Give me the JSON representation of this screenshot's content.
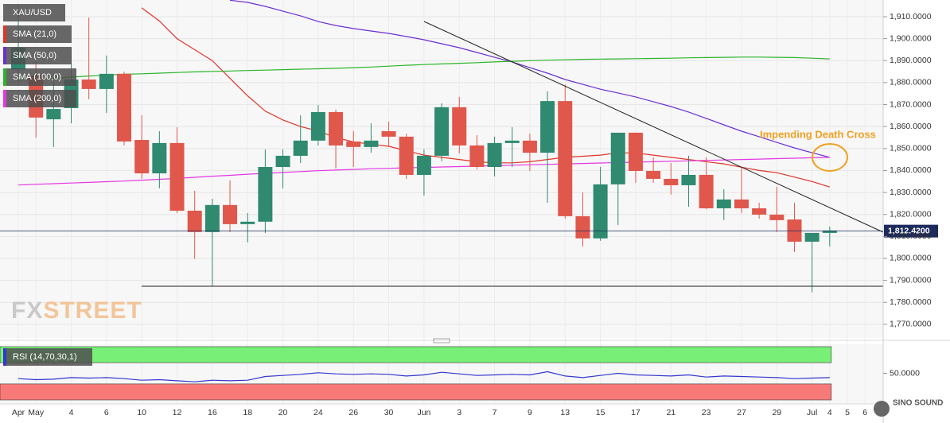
{
  "chart_data": {
    "type": "candlestick",
    "symbol": "XAU/USD",
    "categories": [
      "Apr",
      "May",
      null,
      "4",
      null,
      "6",
      null,
      "10",
      null,
      "12",
      null,
      "16",
      null,
      "18",
      null,
      "20",
      null,
      "24",
      null,
      "26",
      null,
      "30",
      null,
      "Jun",
      null,
      "3",
      null,
      "7",
      null,
      "9",
      null,
      "13",
      null,
      "15",
      null,
      "17",
      null,
      "21",
      null,
      "23",
      null,
      "27",
      null,
      "29",
      null,
      "Jul",
      "4",
      "5",
      "6"
    ],
    "open": [
      1886,
      1883.2,
      1863.3,
      1868.4,
      1881.4,
      1877.1,
      1884,
      1853.9,
      1838.7,
      1852.5,
      1821.7,
      1812,
      1824.3,
      1815.6,
      1816.7,
      1841.6,
      1846.7,
      1853.6,
      1866.6,
      1853.2,
      1850.7,
      1857.9,
      1855.4,
      1838,
      1846.7,
      1868.8,
      1851.4,
      1841.6,
      1852.5,
      1853.6,
      1848.1,
      1871.6,
      1819.2,
      1809.1,
      1833.7,
      1857.2,
      1839.8,
      1836.2,
      1833.3,
      1838,
      1822.8,
      1826.8,
      1822.8,
      1819.9,
      1817.7,
      1807.6,
      1811.6,
      null,
      null
    ],
    "high": [
      1915,
      1890.4,
      1881.4,
      1895.7,
      1909.6,
      1892.3,
      1885,
      1865.1,
      1857.9,
      1859.7,
      1830.8,
      1827.1,
      1835.5,
      1820.6,
      1849.6,
      1849.6,
      1865.1,
      1869.8,
      1867.7,
      1857.9,
      1861.5,
      1862.2,
      1856.8,
      1849.6,
      1870.6,
      1873.5,
      1856.1,
      1855.4,
      1859.7,
      1856.8,
      1876,
      1879.2,
      1830,
      1841.6,
      1857.2,
      1857.2,
      1846,
      1843.4,
      1846.7,
      1846,
      1831.5,
      1841.6,
      1825.3,
      1832.6,
      1825.3,
      1811.6,
      1814.5,
      null,
      null
    ],
    "low": [
      1880,
      1854.9,
      1850.7,
      1861.5,
      1872.4,
      1866.2,
      1851.4,
      1836.2,
      1831.9,
      1820.6,
      1799.7,
      1787.4,
      1812,
      1807.3,
      1811.6,
      1831.9,
      1843.4,
      1851.4,
      1840.9,
      1841.6,
      1848.1,
      1850.7,
      1836.2,
      1828.6,
      1844.2,
      1847.8,
      1840.5,
      1837.3,
      1841.6,
      1839.8,
      1825.3,
      1818.1,
      1805.4,
      1808,
      1815.2,
      1834.4,
      1834.4,
      1829,
      1823.5,
      1822.4,
      1817.4,
      1820.6,
      1818.1,
      1812,
      1802.9,
      1784.5,
      1805.4,
      null,
      null
    ],
    "close": [
      1896,
      1864.1,
      1868,
      1881.4,
      1877.1,
      1884,
      1853.2,
      1838.7,
      1852.5,
      1821.7,
      1812,
      1824.3,
      1815.6,
      1816.7,
      1841.6,
      1846.7,
      1853.6,
      1866.6,
      1851.4,
      1850.7,
      1853.6,
      1855.4,
      1838,
      1846.7,
      1868.8,
      1851.4,
      1841.6,
      1852.5,
      1853.6,
      1848.1,
      1871.6,
      1819.2,
      1809.1,
      1833.7,
      1857.2,
      1839.8,
      1836.2,
      1833.3,
      1838,
      1822.8,
      1826.8,
      1822.8,
      1819.9,
      1817.4,
      1807.6,
      1811.6,
      1812.7,
      null,
      null
    ],
    "up_color": "#2f8a70",
    "down_color": "#e0574b",
    "series": [
      {
        "name": "SMA (21,0)",
        "color": "#e2332a",
        "values": [
          null,
          null,
          null,
          null,
          null,
          null,
          null,
          1914,
          1908,
          1900,
          1895,
          1890,
          1882,
          1874,
          1867,
          1863,
          1860,
          1858,
          1855,
          1853,
          1852,
          1851,
          1849,
          1847,
          1846,
          1845,
          1844,
          1843.5,
          1843.5,
          1844,
          1845,
          1846,
          1846.5,
          1847,
          1848,
          1848,
          1847,
          1846,
          1845,
          1844,
          1843,
          1841.5,
          1840,
          1839,
          1837,
          1835,
          1832.5,
          null,
          null
        ]
      },
      {
        "name": "SMA (50,0)",
        "color": "#6a2fd4",
        "values": [
          null,
          null,
          null,
          null,
          null,
          null,
          null,
          null,
          null,
          null,
          null,
          null,
          1917.5,
          1916.5,
          1914.7,
          1912.5,
          1910.4,
          1907.8,
          1906,
          1904.6,
          1903.5,
          1902.4,
          1901,
          1899.5,
          1897.7,
          1895.9,
          1893.7,
          1891.5,
          1889.4,
          1886.8,
          1884.3,
          1881.4,
          1879.2,
          1877,
          1875.3,
          1873.5,
          1871.3,
          1869.1,
          1866.6,
          1863.7,
          1860.8,
          1857.9,
          1855.4,
          1852.8,
          1850.3,
          1848.1,
          1846,
          null,
          null
        ]
      },
      {
        "name": "SMA (100,0)",
        "color": "#2bb52b",
        "values": [
          1881.2,
          1881.6,
          1882,
          1882.5,
          1883,
          1883.4,
          1883.8,
          1884,
          1884.3,
          1884.6,
          1884.9,
          1885.1,
          1885.3,
          1885.5,
          1885.7,
          1885.9,
          1886.1,
          1886.3,
          1886.5,
          1886.8,
          1887.1,
          1887.5,
          1887.9,
          1888.2,
          1888.5,
          1888.8,
          1889.1,
          1889.4,
          1889.7,
          1890,
          1890.2,
          1890.4,
          1890.6,
          1890.7,
          1890.8,
          1890.9,
          1891,
          1891.1,
          1891.3,
          1891.4,
          1891.5,
          1891.6,
          1891.6,
          1891.5,
          1891.4,
          1891.1,
          1890.8,
          null,
          null
        ]
      },
      {
        "name": "SMA (200,0)",
        "color": "#e437e4",
        "values": [
          1833.4,
          1833.7,
          1834,
          1834.3,
          1834.6,
          1834.9,
          1835.2,
          1835.6,
          1836,
          1836.4,
          1836.9,
          1837.4,
          1837.8,
          1838.3,
          1838.7,
          1839.1,
          1839.5,
          1839.9,
          1840.2,
          1840.5,
          1840.8,
          1841,
          1841.2,
          1841.4,
          1841.6,
          1841.8,
          1842,
          1842.2,
          1842.4,
          1842.6,
          1842.8,
          1843,
          1843.2,
          1843.4,
          1843.6,
          1843.8,
          1844,
          1844.2,
          1844.4,
          1844.6,
          1844.8,
          1845,
          1845.2,
          1845.4,
          1845.6,
          1845.8,
          1846,
          null,
          null
        ]
      }
    ],
    "ylim": [
      1763.8,
      1917.6
    ],
    "yticks": [
      {
        "value": 1770,
        "label": "1,770.0000"
      },
      {
        "value": 1780,
        "label": "1,780.0000"
      },
      {
        "value": 1790,
        "label": "1,790.0000"
      },
      {
        "value": 1800,
        "label": "1,800.0000"
      },
      {
        "value": 1810,
        "label": "1,810.0000"
      },
      {
        "value": 1820,
        "label": "1,820.0000"
      },
      {
        "value": 1830,
        "label": "1,830.0000"
      },
      {
        "value": 1840,
        "label": "1,840.0000"
      },
      {
        "value": 1850,
        "label": "1,850.0000"
      },
      {
        "value": 1860,
        "label": "1,860.0000"
      },
      {
        "value": 1870,
        "label": "1,870.0000"
      },
      {
        "value": 1880,
        "label": "1,880.0000"
      },
      {
        "value": 1890,
        "label": "1,890.0000"
      },
      {
        "value": 1900,
        "label": "1,900.0000"
      },
      {
        "value": 1910,
        "label": "1,910.0000"
      }
    ],
    "last_price": {
      "value": 1812.42,
      "label": "1,812.4200"
    },
    "annotation": "Impending Death Cross",
    "grid": true,
    "indicator": {
      "type": "line",
      "name": "RSI (14,70,30,1)",
      "color": "#3535d0",
      "values": [
        40,
        38,
        39,
        42,
        41,
        42,
        40,
        37,
        38,
        36,
        34,
        37,
        36,
        37,
        44,
        46,
        48,
        51,
        49,
        48,
        49,
        48,
        45,
        47,
        52,
        49,
        46,
        47,
        48,
        47,
        53,
        45,
        42,
        46,
        50,
        47,
        46,
        45,
        47,
        43,
        45,
        44,
        43,
        42,
        40,
        41,
        42,
        null,
        null
      ],
      "ylim": [
        0,
        100
      ],
      "yticks": [
        {
          "value": 50,
          "label": "50.0000"
        }
      ],
      "upper_band": 70,
      "lower_band": 30,
      "upper_color": "#78f078",
      "lower_color": "#f77a78"
    }
  },
  "watermark": [
    "FX",
    "STREET"
  ],
  "logo": "SINO SOUND"
}
